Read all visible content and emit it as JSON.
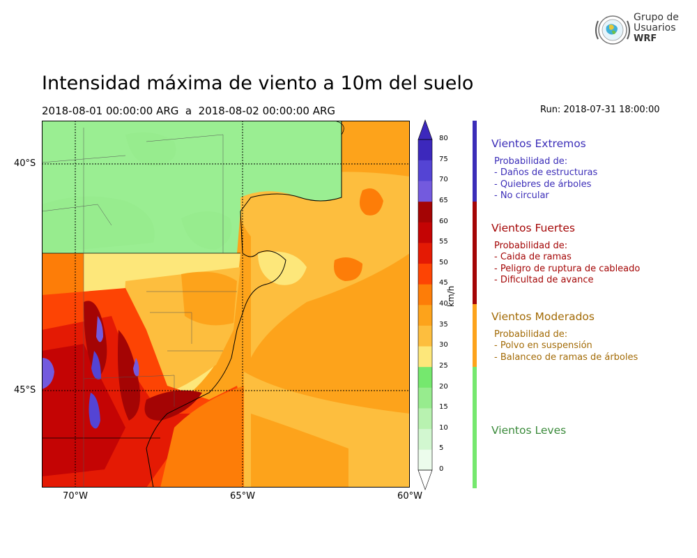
{
  "header": {
    "title": "Intensidad máxima de viento a 10m del suelo",
    "period": "2018-08-01 00:00:00 ARG  a  2018-08-02 00:00:00 ARG",
    "run": "Run: 2018-07-31 18:00:00"
  },
  "logo": {
    "line1": "Grupo de",
    "line2": "Usuarios",
    "line3": "WRF"
  },
  "map": {
    "lon_labels": [
      "70°W",
      "65°W",
      "60°W"
    ],
    "lat_labels": [
      "40°S",
      "45°S"
    ]
  },
  "colorbar": {
    "unit": "km/h",
    "ticks": [
      "0",
      "5",
      "10",
      "15",
      "20",
      "25",
      "30",
      "35",
      "40",
      "45",
      "50",
      "55",
      "60",
      "65",
      "70",
      "75",
      "80"
    ],
    "colors": [
      "#ecfcec",
      "#d2f7d0",
      "#b8f2b0",
      "#97ec8e",
      "#75e86e",
      "#fde77a",
      "#fdbe3e",
      "#fda31b",
      "#fd7d08",
      "#fd4404",
      "#e41a04",
      "#c40404",
      "#a40404",
      "#735ade",
      "#5444d4",
      "#3c28bc"
    ]
  },
  "categories": [
    {
      "title": "Vientos Extremos",
      "color": "#3b2db8",
      "bar_color": "#3b2db8",
      "desc": [
        "Probabilidad de:",
        "- Daños de estructuras",
        "- Quiebres de árboles",
        "- No circular"
      ]
    },
    {
      "title": "Vientos Fuertes",
      "color": "#a40505",
      "bar_color": "#a40505",
      "desc": [
        "Probabilidad de:",
        "- Caida de ramas",
        "- Peligro de ruptura de cableado",
        "- Dificultad de avance"
      ]
    },
    {
      "title": "Vientos Moderados",
      "color": "#a26a05",
      "bar_color": "#fda31b",
      "desc": [
        "Probabilidad de:",
        "- Polvo en suspensión",
        "- Balanceo de ramas de árboles"
      ]
    },
    {
      "title": "Vientos Leves",
      "color": "#3a8a3a",
      "bar_color": "#75e86e",
      "desc": []
    }
  ]
}
